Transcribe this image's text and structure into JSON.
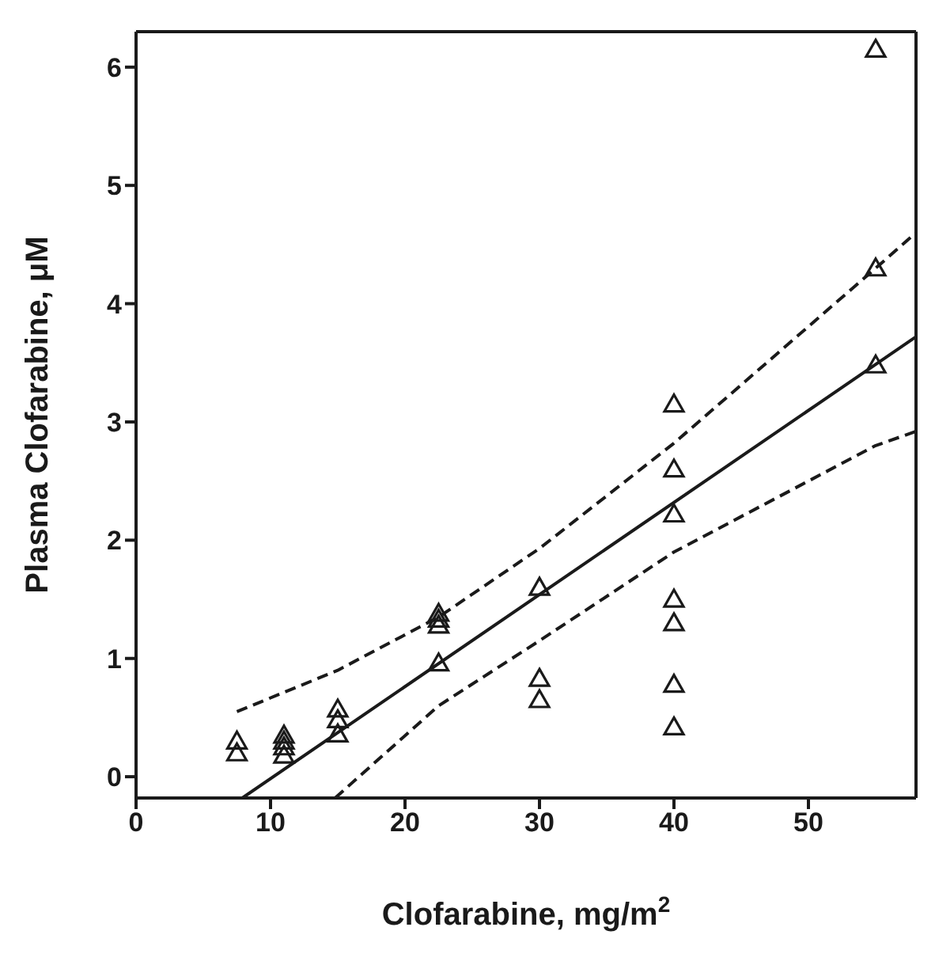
{
  "chart_data": {
    "type": "scatter",
    "xlabel": "Clofarabine, mg/m$^{2}$",
    "ylabel": "Plasma Clofarabine, μM",
    "xlim": [
      0,
      58
    ],
    "ylim": [
      -0.18,
      6.3
    ],
    "xticks": [
      0,
      10,
      20,
      30,
      40,
      50
    ],
    "yticks": [
      0,
      1,
      2,
      3,
      4,
      5,
      6
    ],
    "grid": false,
    "legend": false,
    "marker": "triangle",
    "series": [
      {
        "color": "#1a1a1a",
        "x": [
          7.5,
          7.5,
          11,
          11,
          11,
          11,
          15,
          15,
          15,
          22.5,
          22.5,
          22.5,
          22.5,
          30,
          30,
          30,
          40,
          40,
          40,
          40,
          40,
          40,
          40,
          55,
          55,
          55
        ],
        "values": [
          0.3,
          0.2,
          0.35,
          0.3,
          0.25,
          0.18,
          0.57,
          0.48,
          0.36,
          1.38,
          1.33,
          1.28,
          0.96,
          1.6,
          0.83,
          0.65,
          3.15,
          2.6,
          2.22,
          1.5,
          1.3,
          0.78,
          0.42,
          6.15,
          4.3,
          3.48
        ]
      },
      {
        "type": "line",
        "color": "#1a1a1a",
        "line_style": "solid",
        "marker": "none",
        "x": [
          7.9,
          58
        ],
        "values": [
          -0.18,
          3.72
        ]
      },
      {
        "type": "line",
        "color": "#1a1a1a",
        "line_style": "dashed",
        "marker": "none",
        "x": [
          7.5,
          15,
          22.5,
          30,
          40,
          55,
          58
        ],
        "values": [
          0.55,
          0.9,
          1.35,
          1.93,
          2.82,
          4.3,
          4.6
        ]
      },
      {
        "type": "line",
        "color": "#1a1a1a",
        "line_style": "dashed",
        "marker": "none",
        "x": [
          14.8,
          22.5,
          30,
          40,
          55,
          58
        ],
        "values": [
          -0.18,
          0.6,
          1.15,
          1.9,
          2.8,
          2.92
        ]
      }
    ]
  }
}
